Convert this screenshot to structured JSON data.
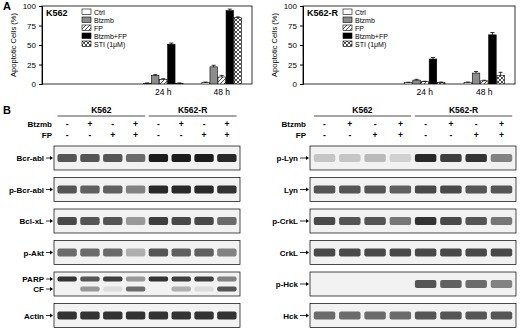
{
  "panel_labels": [
    "A",
    "B"
  ],
  "chart_data": [
    {
      "type": "bar",
      "title": "K562",
      "ylabel": "Apoptotic Cells (%)",
      "categories": [
        "24 h",
        "48 h"
      ],
      "ylim": [
        0,
        100
      ],
      "yticks": [
        0,
        25,
        50,
        75,
        100
      ],
      "legend": "upper left",
      "series": [
        {
          "name": "Ctrl",
          "color": "#ffffff",
          "values": [
            1,
            2
          ],
          "errors": [
            0.3,
            0.5
          ]
        },
        {
          "name": "Btzmb",
          "color": "#8c8c8c",
          "values": [
            11,
            22
          ],
          "errors": [
            1,
            2
          ]
        },
        {
          "name": "FP",
          "color": "#ffffff",
          "line_style": "diagonal",
          "values": [
            6,
            9
          ],
          "errors": [
            0.8,
            2
          ]
        },
        {
          "name": "Btzmb+FP",
          "color": "#000000",
          "values": [
            51,
            94
          ],
          "errors": [
            1.5,
            2
          ]
        },
        {
          "name": "STI (1μM)",
          "color": "#ffffff",
          "line_style": "crosshatch",
          "values": [
            1,
            85
          ],
          "errors": [
            0.3,
            1
          ]
        }
      ]
    },
    {
      "type": "bar",
      "title": "K562-R",
      "ylabel": "Apoptotic Cells (%)",
      "categories": [
        "24 h",
        "48 h"
      ],
      "ylim": [
        0,
        100
      ],
      "yticks": [
        0,
        25,
        50,
        75,
        100
      ],
      "legend": "upper left",
      "series": [
        {
          "name": "Ctrl",
          "color": "#ffffff",
          "values": [
            2,
            2
          ],
          "errors": [
            0.3,
            0.5
          ]
        },
        {
          "name": "Btzmb",
          "color": "#8c8c8c",
          "values": [
            5,
            14
          ],
          "errors": [
            1,
            2
          ]
        },
        {
          "name": "FP",
          "color": "#ffffff",
          "line_style": "diagonal",
          "values": [
            3,
            4
          ],
          "errors": [
            0.5,
            0.8
          ]
        },
        {
          "name": "Btzmb+FP",
          "color": "#000000",
          "values": [
            32,
            63
          ],
          "errors": [
            2,
            3
          ]
        },
        {
          "name": "STI (1μM)",
          "color": "#ffffff",
          "line_style": "crosshatch",
          "values": [
            2,
            11
          ],
          "errors": [
            0.5,
            4
          ]
        }
      ]
    }
  ],
  "blots": [
    {
      "groups": [
        "K562",
        "K562-R"
      ],
      "treatments": [
        {
          "label": "Btzmb",
          "signs": [
            "-",
            "+",
            "-",
            "+",
            "-",
            "+",
            "-",
            "+"
          ]
        },
        {
          "label": "FP",
          "signs": [
            "-",
            "-",
            "+",
            "+",
            "-",
            "-",
            "+",
            "+"
          ]
        }
      ],
      "boxes": [
        {
          "bands": [
            {
              "label": "Bcr-abl",
              "intensities": [
                0.7,
                0.7,
                0.7,
                0.6,
                0.95,
                0.95,
                0.95,
                0.9
              ]
            }
          ]
        },
        {
          "bands": [
            {
              "label": "p-Bcr-abl",
              "intensities": [
                0.7,
                0.65,
                0.65,
                0.5,
                0.9,
                0.9,
                0.9,
                0.85
              ]
            }
          ]
        },
        {
          "bands": [
            {
              "label": "Bcl-xL",
              "intensities": [
                0.75,
                0.7,
                0.7,
                0.4,
                0.8,
                0.75,
                0.75,
                0.6
              ]
            }
          ]
        },
        {
          "bands": [
            {
              "label": "p-Akt",
              "intensities": [
                0.6,
                0.6,
                0.6,
                0.3,
                0.7,
                0.65,
                0.65,
                0.5
              ]
            }
          ]
        },
        {
          "bands": [
            {
              "label": "PARP",
              "intensities": [
                0.85,
                0.7,
                0.8,
                0.4,
                0.85,
                0.8,
                0.8,
                0.5
              ]
            },
            {
              "label": "CF",
              "intensities": [
                0,
                0.4,
                0.1,
                0.6,
                0,
                0.3,
                0.1,
                0.7
              ]
            }
          ]
        },
        {
          "bands": [
            {
              "label": "Actin",
              "intensities": [
                0.85,
                0.85,
                0.85,
                0.85,
                0.85,
                0.85,
                0.85,
                0.85
              ]
            }
          ]
        }
      ]
    },
    {
      "groups": [
        "K562",
        "K562-R"
      ],
      "treatments": [
        {
          "label": "Btzmb",
          "signs": [
            "-",
            "+",
            "-",
            "+",
            "-",
            "+",
            "-",
            "+"
          ]
        },
        {
          "label": "FP",
          "signs": [
            "-",
            "-",
            "+",
            "+",
            "-",
            "-",
            "+",
            "+"
          ]
        }
      ],
      "boxes": [
        {
          "bands": [
            {
              "label": "p-Lyn",
              "intensities": [
                0.2,
                0.2,
                0.25,
                0.15,
                0.9,
                0.8,
                0.85,
                0.5
              ]
            }
          ]
        },
        {
          "bands": [
            {
              "label": "Lyn",
              "intensities": [
                0.7,
                0.7,
                0.7,
                0.65,
                0.75,
                0.75,
                0.7,
                0.7
              ]
            }
          ]
        },
        {
          "bands": [
            {
              "label": "p-CrkL",
              "intensities": [
                0.75,
                0.7,
                0.7,
                0.55,
                0.85,
                0.75,
                0.7,
                0.55
              ]
            }
          ]
        },
        {
          "bands": [
            {
              "label": "CrkL",
              "intensities": [
                0.75,
                0.75,
                0.75,
                0.75,
                0.75,
                0.75,
                0.75,
                0.75
              ]
            }
          ]
        },
        {
          "bands": [
            {
              "label": "p-Hck",
              "intensities": [
                0,
                0,
                0,
                0,
                0.7,
                0.65,
                0.6,
                0.5
              ]
            }
          ]
        },
        {
          "bands": [
            {
              "label": "Hck",
              "intensities": [
                0.6,
                0.6,
                0.6,
                0.6,
                0.7,
                0.7,
                0.7,
                0.7
              ]
            }
          ]
        }
      ]
    }
  ]
}
